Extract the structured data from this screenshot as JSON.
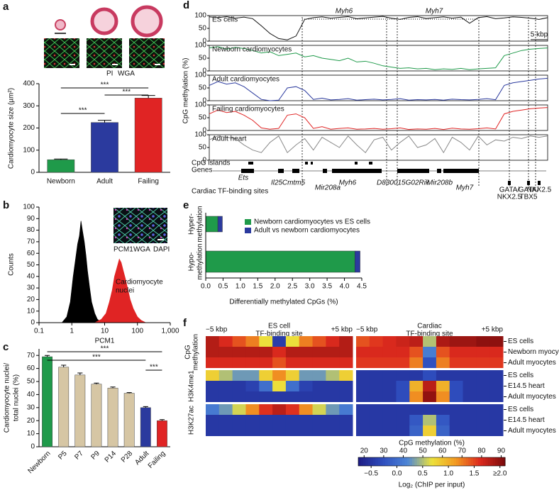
{
  "chart_data": [
    {
      "panel": "a",
      "type": "bar",
      "ylabel": "Cardiomyocyte size (µm²)",
      "categories": [
        "Newborn",
        "Adult",
        "Failing"
      ],
      "values": [
        57,
        225,
        335
      ],
      "errors": [
        3,
        10,
        12
      ],
      "colors": [
        "#1f9a4a",
        "#2b3a9e",
        "#e02424"
      ],
      "ylim": [
        0,
        400
      ],
      "yticks": [
        0,
        100,
        200,
        300,
        400
      ],
      "significance": [
        "***",
        "***",
        "***"
      ],
      "image_labels": [
        "PI",
        "WGA"
      ],
      "image_label_colors": [
        "#e02020",
        "#22c040"
      ]
    },
    {
      "panel": "b",
      "type": "histogram",
      "xlabel": "PCM1",
      "ylabel": "Counts",
      "log_x": true,
      "xlim": [
        0.1,
        1000
      ],
      "xticks": [
        0.1,
        1,
        10,
        100,
        {
          "value": 1000,
          "label": "1,000"
        }
      ],
      "ylim": [
        0,
        100
      ],
      "yticks": [
        0,
        10,
        20,
        30,
        40,
        50,
        60,
        70,
        80,
        90,
        100
      ],
      "series": [
        {
          "color": "#000000",
          "x": [
            0.5,
            0.7,
            0.9,
            1.1,
            1.3,
            1.5,
            1.7,
            1.9,
            2.1,
            2.4,
            2.7,
            3,
            3.5,
            4,
            5,
            6,
            8
          ],
          "values": [
            0,
            5,
            18,
            40,
            55,
            68,
            75,
            88,
            80,
            70,
            58,
            45,
            30,
            18,
            8,
            3,
            0
          ]
        },
        {
          "color": "#e02424",
          "x": [
            5,
            8,
            11,
            14,
            17,
            20,
            24,
            28,
            32,
            37,
            43,
            50,
            60,
            75,
            100,
            130,
            180
          ],
          "values": [
            0,
            3,
            8,
            18,
            28,
            40,
            48,
            55,
            52,
            45,
            38,
            30,
            20,
            12,
            5,
            2,
            0
          ]
        }
      ],
      "annotation": [
        "Cardiomyocyte",
        "nuclei"
      ],
      "image_labels": [
        "PCM1",
        "WGA",
        "DAPI"
      ],
      "image_label_colors": [
        "#e02020",
        "#22c040",
        "#3a6ee0"
      ]
    },
    {
      "panel": "c",
      "type": "bar",
      "ylabel": [
        "Cardiomyocyte nuclei/",
        "total nuclei (%)"
      ],
      "categories": [
        "Newborn",
        "P5",
        "P7",
        "P9",
        "P14",
        "P28",
        "Adult",
        "Failing"
      ],
      "values": [
        69,
        61,
        55,
        48,
        45,
        41,
        30,
        20
      ],
      "errors": [
        1,
        1.5,
        1.5,
        0.8,
        0.8,
        0.5,
        0.8,
        0.8
      ],
      "colors": [
        "#1f9a4a",
        "#d6c6a4",
        "#d6c6a4",
        "#d6c6a4",
        "#d6c6a4",
        "#d6c6a4",
        "#2b3a9e",
        "#e02424"
      ],
      "ylim": [
        0,
        75
      ],
      "yticks": [
        0,
        10,
        20,
        30,
        40,
        50,
        60,
        70
      ],
      "significance": [
        "***",
        "***",
        "***"
      ]
    },
    {
      "panel": "d",
      "type": "line",
      "ylabel": "CpG methylation (%)",
      "ylim": [
        0,
        100
      ],
      "yticks": [
        0,
        50,
        100
      ],
      "series": [
        {
          "name": "ES cells",
          "color": "#111111",
          "values": [
            95,
            92,
            96,
            90,
            94,
            88,
            60,
            30,
            10,
            5,
            20,
            85,
            92,
            95,
            90,
            93,
            96,
            88,
            91,
            94,
            97,
            90,
            85,
            93,
            96,
            89,
            92,
            95,
            90,
            94,
            70,
            92,
            96,
            88,
            91,
            95,
            93,
            90,
            85,
            92
          ]
        },
        {
          "name": "Newborn cardiomyocytes",
          "color": "#1f9a4a",
          "values": [
            90,
            95,
            85,
            92,
            88,
            80,
            70,
            75,
            60,
            65,
            70,
            55,
            60,
            50,
            45,
            40,
            50,
            35,
            38,
            30,
            20,
            15,
            10,
            12,
            8,
            10,
            5,
            8,
            6,
            10,
            5,
            8,
            10,
            12,
            60,
            70,
            80,
            85,
            88,
            90
          ]
        },
        {
          "name": "Adult cardiomyocytes",
          "color": "#2b3a9e",
          "values": [
            60,
            75,
            65,
            70,
            55,
            30,
            5,
            0,
            2,
            50,
            55,
            40,
            5,
            10,
            3,
            5,
            8,
            2,
            4,
            6,
            3,
            5,
            8,
            2,
            4,
            3,
            5,
            2,
            6,
            4,
            3,
            5,
            8,
            4,
            60,
            70,
            75,
            80,
            85,
            88
          ]
        },
        {
          "name": "Failing cardiomyocytes",
          "color": "#e02424",
          "values": [
            65,
            80,
            70,
            75,
            60,
            40,
            10,
            5,
            8,
            60,
            65,
            50,
            8,
            15,
            5,
            8,
            10,
            5,
            6,
            8,
            5,
            7,
            10,
            4,
            6,
            5,
            8,
            4,
            9,
            6,
            5,
            7,
            10,
            6,
            65,
            75,
            80,
            85,
            88,
            90
          ]
        },
        {
          "name": "Adult heart",
          "color": "#888888",
          "values": [
            80,
            95,
            90,
            85,
            60,
            40,
            30,
            70,
            95,
            30,
            60,
            85,
            40,
            90,
            70,
            50,
            95,
            60,
            30,
            80,
            90,
            40,
            70,
            95,
            50,
            60,
            85,
            30,
            90,
            70,
            40,
            95,
            60,
            80,
            75,
            90,
            85,
            95,
            90,
            95
          ]
        }
      ],
      "top_genes": [
        "Myh6",
        "Myh7"
      ],
      "scale": "5 kbp",
      "tracks": [
        "CpG islands",
        "Genes",
        "Cardiac TF-binding sites"
      ],
      "genes": [
        "Ets",
        "Il25",
        "Cmtm5",
        "Mir208a",
        "Myh6",
        "D830015G02Rik",
        "Mir208b",
        "Myh7"
      ],
      "tf_sites": [
        [
          "GATA/",
          "NKX2.5"
        ],
        [
          "GATA/",
          "TBX5"
        ],
        [
          "NKX2.5"
        ]
      ]
    },
    {
      "panel": "e",
      "type": "stacked-bar",
      "orientation": "horizontal",
      "xlabel": "Differentially methylated CpGs (%)",
      "categories": [
        [
          "Hyper-",
          "methylation"
        ],
        [
          "Hypo-",
          "methylation"
        ]
      ],
      "series": [
        {
          "name": "Newborn cardiomyocytes vs ES cells",
          "color": "#1f9a4a",
          "values": [
            0.35,
            4.3
          ]
        },
        {
          "name": "Adult vs newborn cardiomyocytes",
          "color": "#2b3a9e",
          "values": [
            0.13,
            0.15
          ]
        }
      ],
      "xlim": [
        0,
        4.5
      ],
      "xticks": [
        {
          "value": 0,
          "label": "0.0"
        },
        0.5,
        {
          "value": 1,
          "label": "1.0"
        },
        1.5,
        {
          "value": 2,
          "label": "2.0"
        },
        2.5,
        {
          "value": 3,
          "label": "3.0"
        },
        3.5,
        {
          "value": 4,
          "label": "4.0"
        },
        4.5
      ],
      "legend": "top-right"
    },
    {
      "panel": "f",
      "type": "heatmap",
      "columns": [
        {
          "title": [
            "ES cell",
            "TF-binding site"
          ],
          "left": "−5 kbp",
          "right": "+5 kbp"
        },
        {
          "title": [
            "Cardiac",
            "TF-binding site"
          ],
          "left": "−5 kbp",
          "right": "+5 kbp"
        }
      ],
      "groups": [
        {
          "name": [
            "CpG",
            "methylation"
          ],
          "rows": [
            {
              "name": "ES cells",
              "left": [
                85,
                80,
                75,
                70,
                55,
                25,
                55,
                70,
                75,
                80,
                85
              ],
              "right": [
                75,
                78,
                80,
                82,
                84,
                50,
                86,
                88,
                88,
                90,
                90
              ]
            },
            {
              "name": "Newborn myocytes",
              "left": [
                85,
                85,
                85,
                85,
                85,
                80,
                85,
                85,
                85,
                85,
                85
              ],
              "right": [
                80,
                80,
                80,
                80,
                75,
                40,
                75,
                80,
                80,
                80,
                80
              ]
            },
            {
              "name": "Adult myocytes",
              "left": [
                80,
                80,
                80,
                80,
                80,
                75,
                80,
                80,
                80,
                80,
                80
              ],
              "right": [
                78,
                78,
                78,
                78,
                70,
                30,
                70,
                78,
                78,
                78,
                78
              ]
            }
          ]
        },
        {
          "name": [
            "H3K4me1"
          ],
          "rows": [
            {
              "name": "ES cells",
              "left": [
                0.8,
                0.5,
                0.3,
                0.3,
                0.8,
                1.2,
                0.8,
                0.3,
                0.3,
                0.5,
                0.8
              ],
              "right": [
                -0.5,
                -0.5,
                -0.5,
                -0.5,
                -0.5,
                -0.3,
                -0.5,
                -0.5,
                -0.5,
                -0.5,
                -0.5
              ]
            },
            {
              "name": "E14.5 heart",
              "left": [
                -0.5,
                -0.5,
                -0.5,
                -0.4,
                0,
                0.7,
                0,
                -0.4,
                -0.5,
                -0.5,
                -0.5
              ],
              "right": [
                -0.5,
                -0.5,
                -0.5,
                -0.3,
                1,
                1.8,
                1,
                -0.3,
                -0.5,
                -0.5,
                -0.5
              ]
            },
            {
              "name": "Adult myocytes",
              "left": [
                -0.5,
                -0.5,
                -0.5,
                -0.5,
                -0.5,
                -0.5,
                -0.5,
                -0.5,
                -0.5,
                -0.5,
                -0.5
              ],
              "right": [
                -0.5,
                -0.5,
                -0.5,
                -0.3,
                1.2,
                2,
                1.2,
                -0.3,
                -0.5,
                -0.5,
                -0.5
              ]
            }
          ]
        },
        {
          "name": [
            "H3K27ac"
          ],
          "rows": [
            {
              "name": "ES cells",
              "left": [
                0.1,
                0.3,
                0.6,
                1.2,
                1.6,
                1.8,
                1.6,
                1.2,
                0.6,
                0.3,
                0.1
              ],
              "right": [
                -0.5,
                -0.5,
                -0.5,
                -0.5,
                -0.5,
                -0.5,
                -0.5,
                -0.5,
                -0.5,
                -0.5,
                -0.5
              ]
            },
            {
              "name": "E14.5 heart",
              "left": [
                -0.5,
                -0.5,
                -0.5,
                -0.5,
                -0.5,
                -0.5,
                -0.5,
                -0.5,
                -0.5,
                -0.5,
                -0.5
              ],
              "right": [
                -0.5,
                -0.5,
                -0.5,
                -0.5,
                -0.2,
                0.5,
                -0.2,
                -0.5,
                -0.5,
                -0.5,
                -0.5
              ]
            },
            {
              "name": "Adult myocytes",
              "left": [
                -0.5,
                -0.5,
                -0.5,
                -0.5,
                -0.5,
                -0.5,
                -0.5,
                -0.5,
                -0.5,
                -0.5,
                -0.5
              ],
              "right": [
                -0.5,
                -0.5,
                -0.5,
                -0.5,
                -0.1,
                0.8,
                -0.1,
                -0.5,
                -0.5,
                -0.5,
                -0.5
              ]
            }
          ]
        }
      ],
      "colormap": [
        "#1e1e86",
        "#2f4fbf",
        "#4d86d6",
        "#ece23c",
        "#f29a22",
        "#dd2a1e",
        "#7e0c0c"
      ],
      "colorbars": [
        {
          "title": "CpG methylation (%)",
          "clim": [
            17,
            92
          ],
          "ticks": [
            20,
            30,
            40,
            50,
            60,
            70,
            80,
            90
          ]
        },
        {
          "title": "Log₂ (ChIP per input)",
          "clim": [
            -0.75,
            2.1
          ],
          "ticks": [
            {
              "value": -0.5,
              "label": "−0.5"
            },
            {
              "value": 0,
              "label": "0.0"
            },
            0.5,
            {
              "value": 1,
              "label": "1.0"
            },
            1.5,
            {
              "value": 2,
              "label": "≥2.0"
            }
          ]
        }
      ]
    }
  ]
}
